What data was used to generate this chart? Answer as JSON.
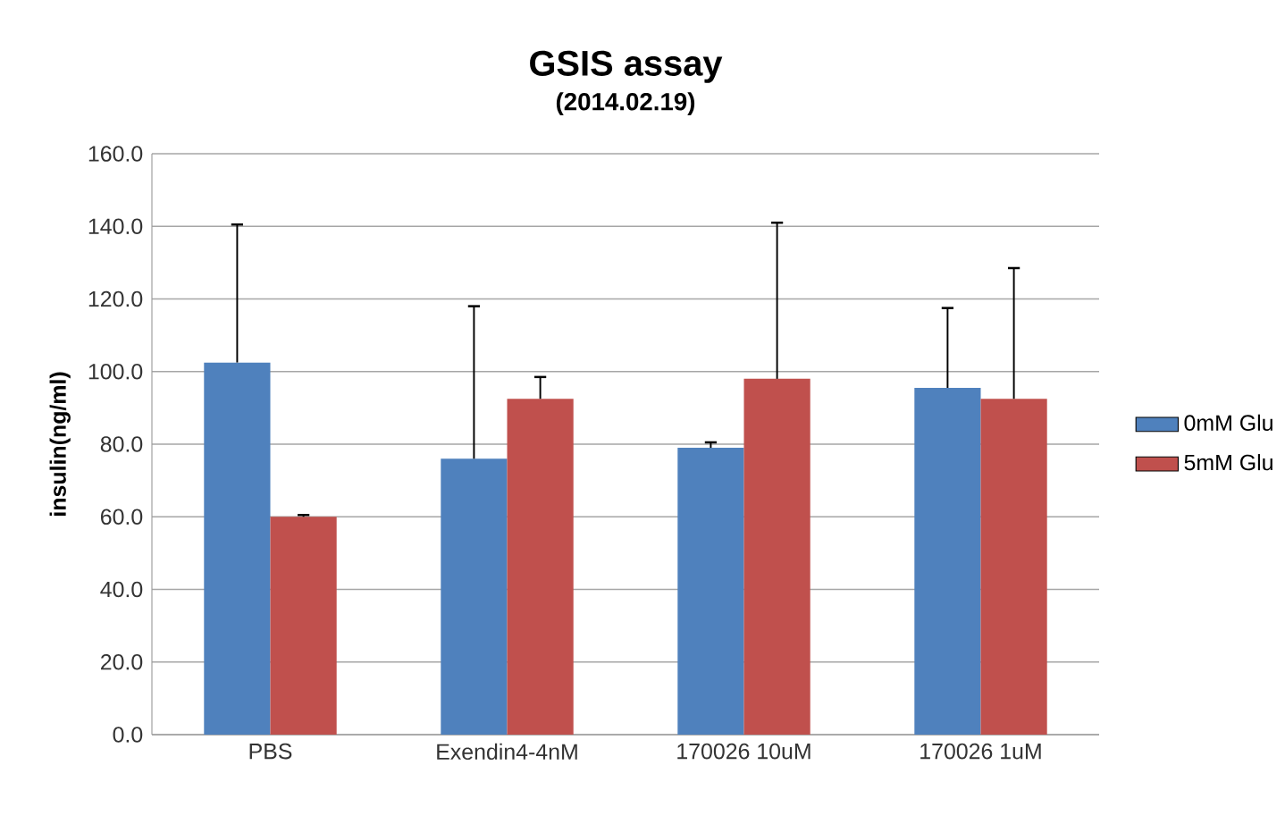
{
  "chart_data": {
    "type": "bar",
    "title": "GSIS assay",
    "subtitle": "(2014.02.19)",
    "ylabel": "insulin(ng/ml)",
    "categories": [
      "PBS",
      "Exendin4-4nM",
      "170026 10uM",
      "170026 1uM"
    ],
    "series": [
      {
        "name": "0mM Glu",
        "color": "#4f81bd",
        "values": [
          102.5,
          76,
          79,
          95.5
        ],
        "errors": [
          [
            102.5,
            140.5
          ],
          [
            76,
            118
          ],
          [
            79,
            80.5
          ],
          [
            95.5,
            117.5
          ]
        ]
      },
      {
        "name": "5mM Glu",
        "color": "#c0504d",
        "values": [
          60,
          92.5,
          98,
          92.5
        ],
        "errors": [
          [
            60,
            60.5
          ],
          [
            92.5,
            98.5
          ],
          [
            98,
            141
          ],
          [
            92.5,
            128.5
          ]
        ]
      }
    ],
    "ylim": [
      0,
      160
    ],
    "yticks": [
      {
        "value": 0,
        "label": "0.0"
      },
      {
        "value": 20,
        "label": "20.0"
      },
      {
        "value": 40,
        "label": "40.0"
      },
      {
        "value": 60,
        "label": "60.0"
      },
      {
        "value": 80,
        "label": "80.0"
      },
      {
        "value": 100,
        "label": "100.0"
      },
      {
        "value": 120,
        "label": "120.0"
      },
      {
        "value": 140,
        "label": "140.0"
      },
      {
        "value": 160,
        "label": "160.0"
      }
    ],
    "grid": "y",
    "legend": "right"
  }
}
